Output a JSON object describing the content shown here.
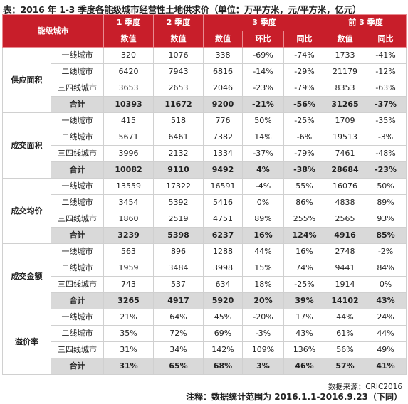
{
  "title": "表：2016 年 1-3 季度各能级城市经营性土地供求价（单位：万平方米，元/平方米，亿元）",
  "header": {
    "corner": "能级城市",
    "q1": "1 季度",
    "q2": "2 季度",
    "q3": "3 季度",
    "q13": "前 3 季度",
    "value": "数值",
    "qoq": "环比",
    "yoy": "同比"
  },
  "groups": [
    {
      "name": "供应面积",
      "rows": [
        {
          "city": "一线城市",
          "cells": [
            "320",
            "1076",
            "338",
            "-69%",
            "-74%",
            "1733",
            "-41%"
          ]
        },
        {
          "city": "二线城市",
          "cells": [
            "6420",
            "7943",
            "6816",
            "-14%",
            "-29%",
            "21179",
            "-12%"
          ]
        },
        {
          "city": "三四线城市",
          "cells": [
            "3653",
            "2653",
            "2046",
            "-23%",
            "-79%",
            "8353",
            "-63%"
          ]
        }
      ],
      "total": {
        "city": "合计",
        "cells": [
          "10393",
          "11672",
          "9200",
          "-21%",
          "-56%",
          "31265",
          "-37%"
        ]
      }
    },
    {
      "name": "成交面积",
      "rows": [
        {
          "city": "一线城市",
          "cells": [
            "415",
            "518",
            "776",
            "50%",
            "-25%",
            "1709",
            "-35%"
          ]
        },
        {
          "city": "二线城市",
          "cells": [
            "5671",
            "6461",
            "7382",
            "14%",
            "-6%",
            "19513",
            "-3%"
          ]
        },
        {
          "city": "三四线城市",
          "cells": [
            "3996",
            "2132",
            "1334",
            "-37%",
            "-79%",
            "7461",
            "-48%"
          ]
        }
      ],
      "total": {
        "city": "合计",
        "cells": [
          "10082",
          "9110",
          "9492",
          "4%",
          "-38%",
          "28684",
          "-23%"
        ]
      }
    },
    {
      "name": "成交均价",
      "rows": [
        {
          "city": "一线城市",
          "cells": [
            "13559",
            "17322",
            "16591",
            "-4%",
            "55%",
            "16076",
            "50%"
          ]
        },
        {
          "city": "二线城市",
          "cells": [
            "3454",
            "5392",
            "5416",
            "0%",
            "86%",
            "4838",
            "89%"
          ]
        },
        {
          "city": "三四线城市",
          "cells": [
            "1860",
            "2519",
            "4751",
            "89%",
            "255%",
            "2565",
            "93%"
          ]
        }
      ],
      "total": {
        "city": "合计",
        "cells": [
          "3239",
          "5398",
          "6237",
          "16%",
          "124%",
          "4916",
          "85%"
        ]
      }
    },
    {
      "name": "成交金额",
      "rows": [
        {
          "city": "一线城市",
          "cells": [
            "563",
            "896",
            "1288",
            "44%",
            "16%",
            "2748",
            "-2%"
          ]
        },
        {
          "city": "二线城市",
          "cells": [
            "1959",
            "3484",
            "3998",
            "15%",
            "74%",
            "9441",
            "84%"
          ]
        },
        {
          "city": "三四线城市",
          "cells": [
            "743",
            "537",
            "634",
            "18%",
            "-25%",
            "1914",
            "0%"
          ]
        }
      ],
      "total": {
        "city": "合计",
        "cells": [
          "3265",
          "4917",
          "5920",
          "20%",
          "39%",
          "14102",
          "43%"
        ]
      }
    },
    {
      "name": "溢价率",
      "rows": [
        {
          "city": "一线城市",
          "cells": [
            "21%",
            "64%",
            "45%",
            "-20%",
            "17%",
            "44%",
            "24%"
          ]
        },
        {
          "city": "二线城市",
          "cells": [
            "35%",
            "72%",
            "69%",
            "-3%",
            "43%",
            "61%",
            "44%"
          ]
        },
        {
          "city": "三四线城市",
          "cells": [
            "31%",
            "34%",
            "142%",
            "109%",
            "136%",
            "56%",
            "49%"
          ]
        }
      ],
      "total": {
        "city": "合计",
        "cells": [
          "31%",
          "65%",
          "68%",
          "3%",
          "46%",
          "57%",
          "41%"
        ]
      }
    }
  ],
  "source": "数据来源：CRIC2016",
  "note": "注释：数据统计范围为 2016.1.1-2016.9.23（下同）"
}
